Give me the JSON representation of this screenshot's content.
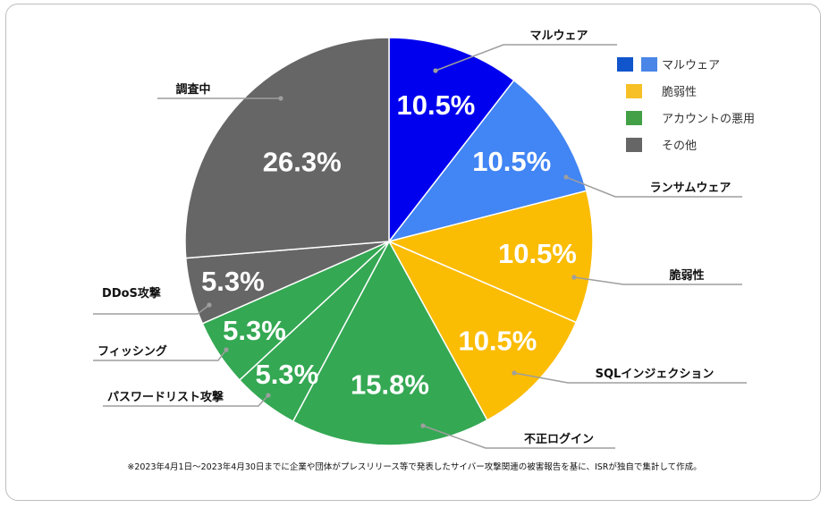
{
  "chart_data": {
    "type": "pie",
    "slices": [
      {
        "label": "マルウェア",
        "value": 10.5,
        "value_label": "10.5%",
        "color": "#0000ee",
        "category": "マルウェア"
      },
      {
        "label": "ランサムウェア",
        "value": 10.5,
        "value_label": "10.5%",
        "color": "#4285f4",
        "category": "マルウェア"
      },
      {
        "label": "脆弱性",
        "value": 10.5,
        "value_label": "10.5%",
        "color": "#fbbc04",
        "category": "脆弱性"
      },
      {
        "label": "SQLインジェクション",
        "value": 10.5,
        "value_label": "10.5%",
        "color": "#fbbc04",
        "category": "脆弱性"
      },
      {
        "label": "不正ログイン",
        "value": 15.8,
        "value_label": "15.8%",
        "color": "#34a853",
        "category": "アカウントの悪用"
      },
      {
        "label": "パスワードリスト攻撃",
        "value": 5.3,
        "value_label": "5.3%",
        "color": "#34a853",
        "category": "アカウントの悪用"
      },
      {
        "label": "フィッシング",
        "value": 5.3,
        "value_label": "5.3%",
        "color": "#34a853",
        "category": "アカウントの悪用"
      },
      {
        "label": "DDoS攻撃",
        "value": 5.3,
        "value_label": "5.3%",
        "color": "#666666",
        "category": "その他"
      },
      {
        "label": "調査中",
        "value": 26.3,
        "value_label": "26.3%",
        "color": "#666666",
        "category": "その他"
      }
    ],
    "legend": [
      {
        "label": "マルウェア",
        "colors": [
          "#1155cc",
          "#4a86e8"
        ]
      },
      {
        "label": "脆弱性",
        "colors": [
          "#f6c026"
        ]
      },
      {
        "label": "アカウントの悪用",
        "colors": [
          "#43a047"
        ]
      },
      {
        "label": "その他",
        "colors": [
          "#666666"
        ]
      }
    ],
    "legend_position": "top-right",
    "footnote": "※2023年4月1日～2023年4月30日までに企業や団体がプレスリリース等で発表したサイバー攻撃関連の被害報告を基に、ISRが独自で集計して作成。"
  }
}
